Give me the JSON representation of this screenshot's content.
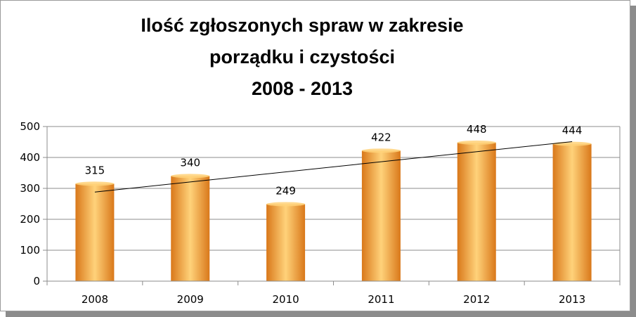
{
  "chart_data": {
    "type": "bar",
    "title_lines": [
      "Ilość zgłoszonych spraw w zakresie",
      "porządku i czystości",
      "2008 - 2013"
    ],
    "categories": [
      "2008",
      "2009",
      "2010",
      "2011",
      "2012",
      "2013"
    ],
    "values": [
      315,
      340,
      249,
      422,
      448,
      444
    ],
    "ylim": [
      0,
      500
    ],
    "yticks": [
      "0",
      "100",
      "200",
      "300",
      "400",
      "500"
    ],
    "grid": true,
    "legend": "none",
    "trendline": "linear",
    "colors": {
      "bar_light": "#ffd27a",
      "bar_mid": "#f6a43c",
      "bar_dark": "#d9781a",
      "grid": "#8c8c8c",
      "trend": "#000000"
    }
  }
}
